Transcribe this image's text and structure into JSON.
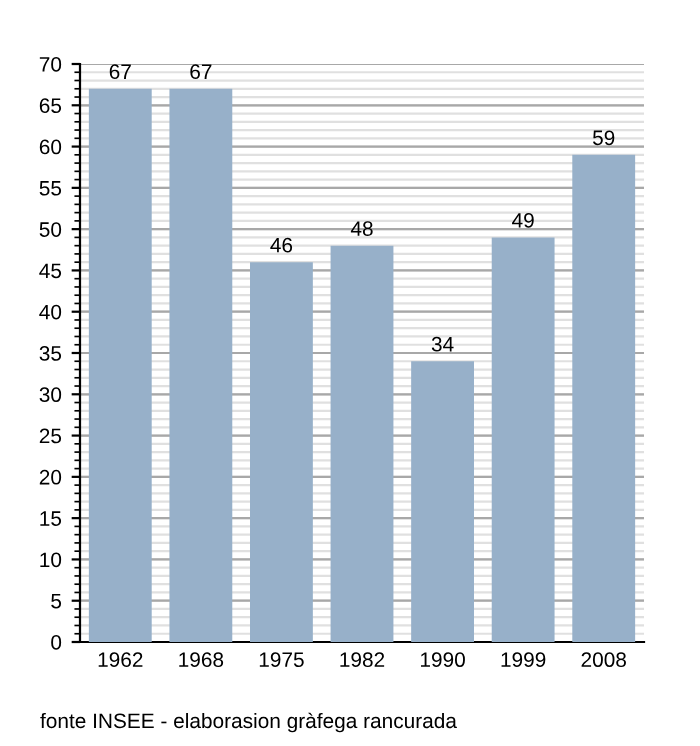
{
  "chart_data": {
    "type": "bar",
    "categories": [
      "1962",
      "1968",
      "1975",
      "1982",
      "1990",
      "1999",
      "2008"
    ],
    "values": [
      67,
      67,
      46,
      48,
      34,
      49,
      59
    ],
    "color": "#97b0c9",
    "ylim": [
      0,
      70
    ],
    "yticks": [
      0,
      5,
      10,
      15,
      20,
      25,
      30,
      35,
      40,
      45,
      50,
      55,
      60,
      65,
      70
    ],
    "grid": "y",
    "data_labels": true,
    "legend": false,
    "annotations": [
      "fonte INSEE - elaborasion gràfega rancurada"
    ]
  }
}
